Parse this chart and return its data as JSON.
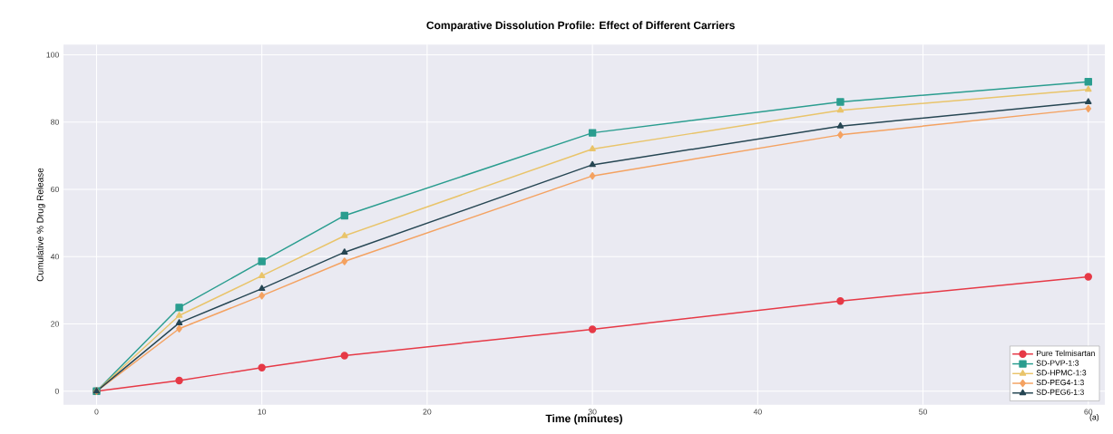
{
  "chart_data": {
    "type": "line",
    "title": "Comparative Dissolution Profile: Effect of Different Carriers",
    "xlabel": "Time (minutes)",
    "ylabel": "Cumulative % Drug Release",
    "x": [
      0,
      5,
      10,
      15,
      30,
      45,
      60
    ],
    "series": [
      {
        "name": "Pure Telmisartan",
        "color": "#e63946",
        "marker": "circle",
        "values": [
          0,
          3.2,
          7.0,
          10.6,
          18.4,
          26.8,
          34
        ]
      },
      {
        "name": "SD-PVP-1:3",
        "color": "#2a9d8f",
        "marker": "square",
        "values": [
          0,
          24.9,
          38.6,
          52.2,
          76.8,
          86,
          92
        ]
      },
      {
        "name": "SD-HPMC-1:3",
        "color": "#e9c46a",
        "marker": "triangle",
        "values": [
          0,
          22.5,
          34.3,
          46.2,
          72,
          83.5,
          89.7
        ]
      },
      {
        "name": "SD-PEG4-1:3",
        "color": "#f4a261",
        "marker": "diamond",
        "values": [
          0,
          18.6,
          28.4,
          38.6,
          64,
          76.2,
          84
        ]
      },
      {
        "name": "SD-PEG6-1:3",
        "color": "#264653",
        "marker": "triangle",
        "values": [
          0,
          20.3,
          30.5,
          41.3,
          67.3,
          78.8,
          86
        ]
      }
    ],
    "xlim": [
      -2,
      61
    ],
    "ylim": [
      -4,
      103
    ],
    "xticks": [
      0,
      10,
      20,
      30,
      40,
      50,
      60
    ],
    "yticks": [
      0,
      20,
      40,
      60,
      80,
      100
    ],
    "grid": true,
    "legend": "bottom right",
    "line_style": "solid",
    "annotations": [
      "(a)"
    ]
  }
}
